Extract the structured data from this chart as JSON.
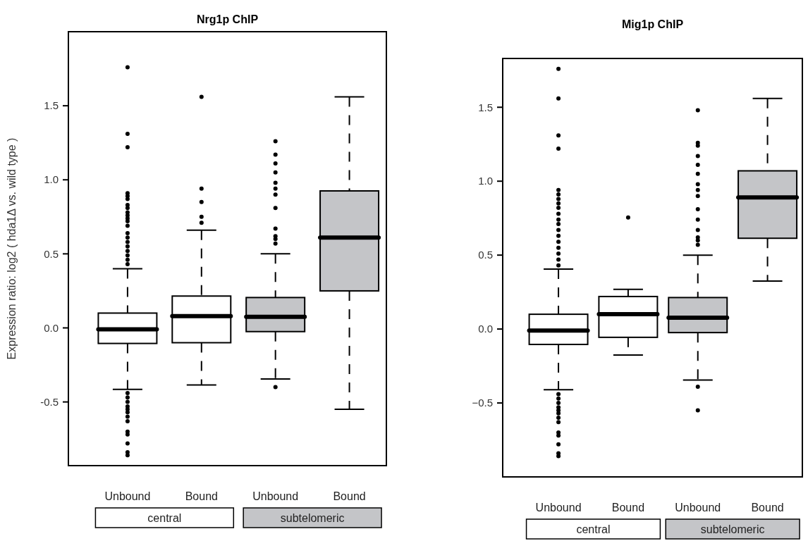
{
  "chart_data": [
    {
      "type": "box",
      "title": "Nrg1p ChIP",
      "ylabel": "Expression ratio: log2 ( hda1Δ vs. wild type )",
      "categories": [
        "Unbound",
        "Bound",
        "Unbound",
        "Bound"
      ],
      "colors": [
        "#ffffff",
        "#ffffff",
        "#c4c5c8",
        "#c4c5c8"
      ],
      "ylim": [
        -0.93,
        2.0
      ],
      "yticks": [
        -0.5,
        {
          "value": 0,
          "label": "0.0"
        },
        0.5,
        {
          "value": 1,
          "label": "1.0"
        },
        1.5
      ],
      "annotations": [
        "central",
        "subtelomeric"
      ],
      "boxes": [
        {
          "low": -0.415,
          "q1": -0.105,
          "median": -0.01,
          "q3": 0.1,
          "high": 0.4,
          "outliers": [
            1.76,
            1.31,
            1.22,
            0.91,
            0.89,
            0.87,
            0.83,
            0.81,
            0.78,
            0.76,
            0.74,
            0.72,
            0.69,
            0.64,
            0.61,
            0.58,
            0.55,
            0.52,
            0.49,
            0.46,
            0.43,
            -0.44,
            -0.47,
            -0.5,
            -0.53,
            -0.55,
            -0.57,
            -0.6,
            -0.63,
            -0.7,
            -0.72,
            -0.78,
            -0.84,
            -0.86
          ]
        },
        {
          "low": -0.385,
          "q1": -0.1,
          "median": 0.08,
          "q3": 0.215,
          "high": 0.66,
          "outliers": [
            1.56,
            0.94,
            0.85,
            0.75,
            0.71
          ]
        },
        {
          "low": -0.345,
          "q1": -0.025,
          "median": 0.075,
          "q3": 0.205,
          "high": 0.5,
          "outliers": [
            1.26,
            1.17,
            1.11,
            1.05,
            0.98,
            0.94,
            0.9,
            0.81,
            0.67,
            0.62,
            0.6,
            0.57,
            -0.4
          ]
        },
        {
          "low": -0.55,
          "q1": 0.25,
          "median": 0.61,
          "q3": 0.925,
          "high": 1.56
        }
      ]
    },
    {
      "type": "box",
      "title": "Mig1p ChIP",
      "categories": [
        "Unbound",
        "Bound",
        "Unbound",
        "Bound"
      ],
      "colors": [
        "#ffffff",
        "#ffffff",
        "#c4c5c8",
        "#c4c5c8"
      ],
      "ylim": [
        -1.0,
        1.83
      ],
      "yticks": [
        {
          "value": -0.5,
          "label": "−0.5"
        },
        {
          "value": 0,
          "label": "0.0"
        },
        0.5,
        {
          "value": 1,
          "label": "1.0"
        },
        1.5
      ],
      "annotations": [
        "central",
        "subtelomeric"
      ],
      "boxes": [
        {
          "low": -0.41,
          "q1": -0.104,
          "median": -0.01,
          "q3": 0.1,
          "high": 0.405,
          "outliers": [
            1.76,
            1.56,
            1.31,
            1.22,
            0.94,
            0.91,
            0.88,
            0.85,
            0.82,
            0.78,
            0.74,
            0.71,
            0.67,
            0.63,
            0.59,
            0.55,
            0.51,
            0.47,
            0.43,
            -0.44,
            -0.47,
            -0.5,
            -0.53,
            -0.55,
            -0.57,
            -0.6,
            -0.63,
            -0.7,
            -0.72,
            -0.78,
            -0.84,
            -0.86
          ]
        },
        {
          "low": -0.176,
          "q1": -0.056,
          "median": 0.1,
          "q3": 0.22,
          "high": 0.268,
          "outliers": [
            0.755
          ]
        },
        {
          "low": -0.345,
          "q1": -0.024,
          "median": 0.077,
          "q3": 0.213,
          "high": 0.5,
          "outliers": [
            1.48,
            1.26,
            1.24,
            1.17,
            1.11,
            1.05,
            0.98,
            0.94,
            0.9,
            0.81,
            0.74,
            0.67,
            0.62,
            0.6,
            0.57,
            -0.39,
            -0.55
          ]
        },
        {
          "low": 0.324,
          "q1": 0.614,
          "median": 0.89,
          "q3": 1.07,
          "high": 1.56
        }
      ]
    }
  ]
}
